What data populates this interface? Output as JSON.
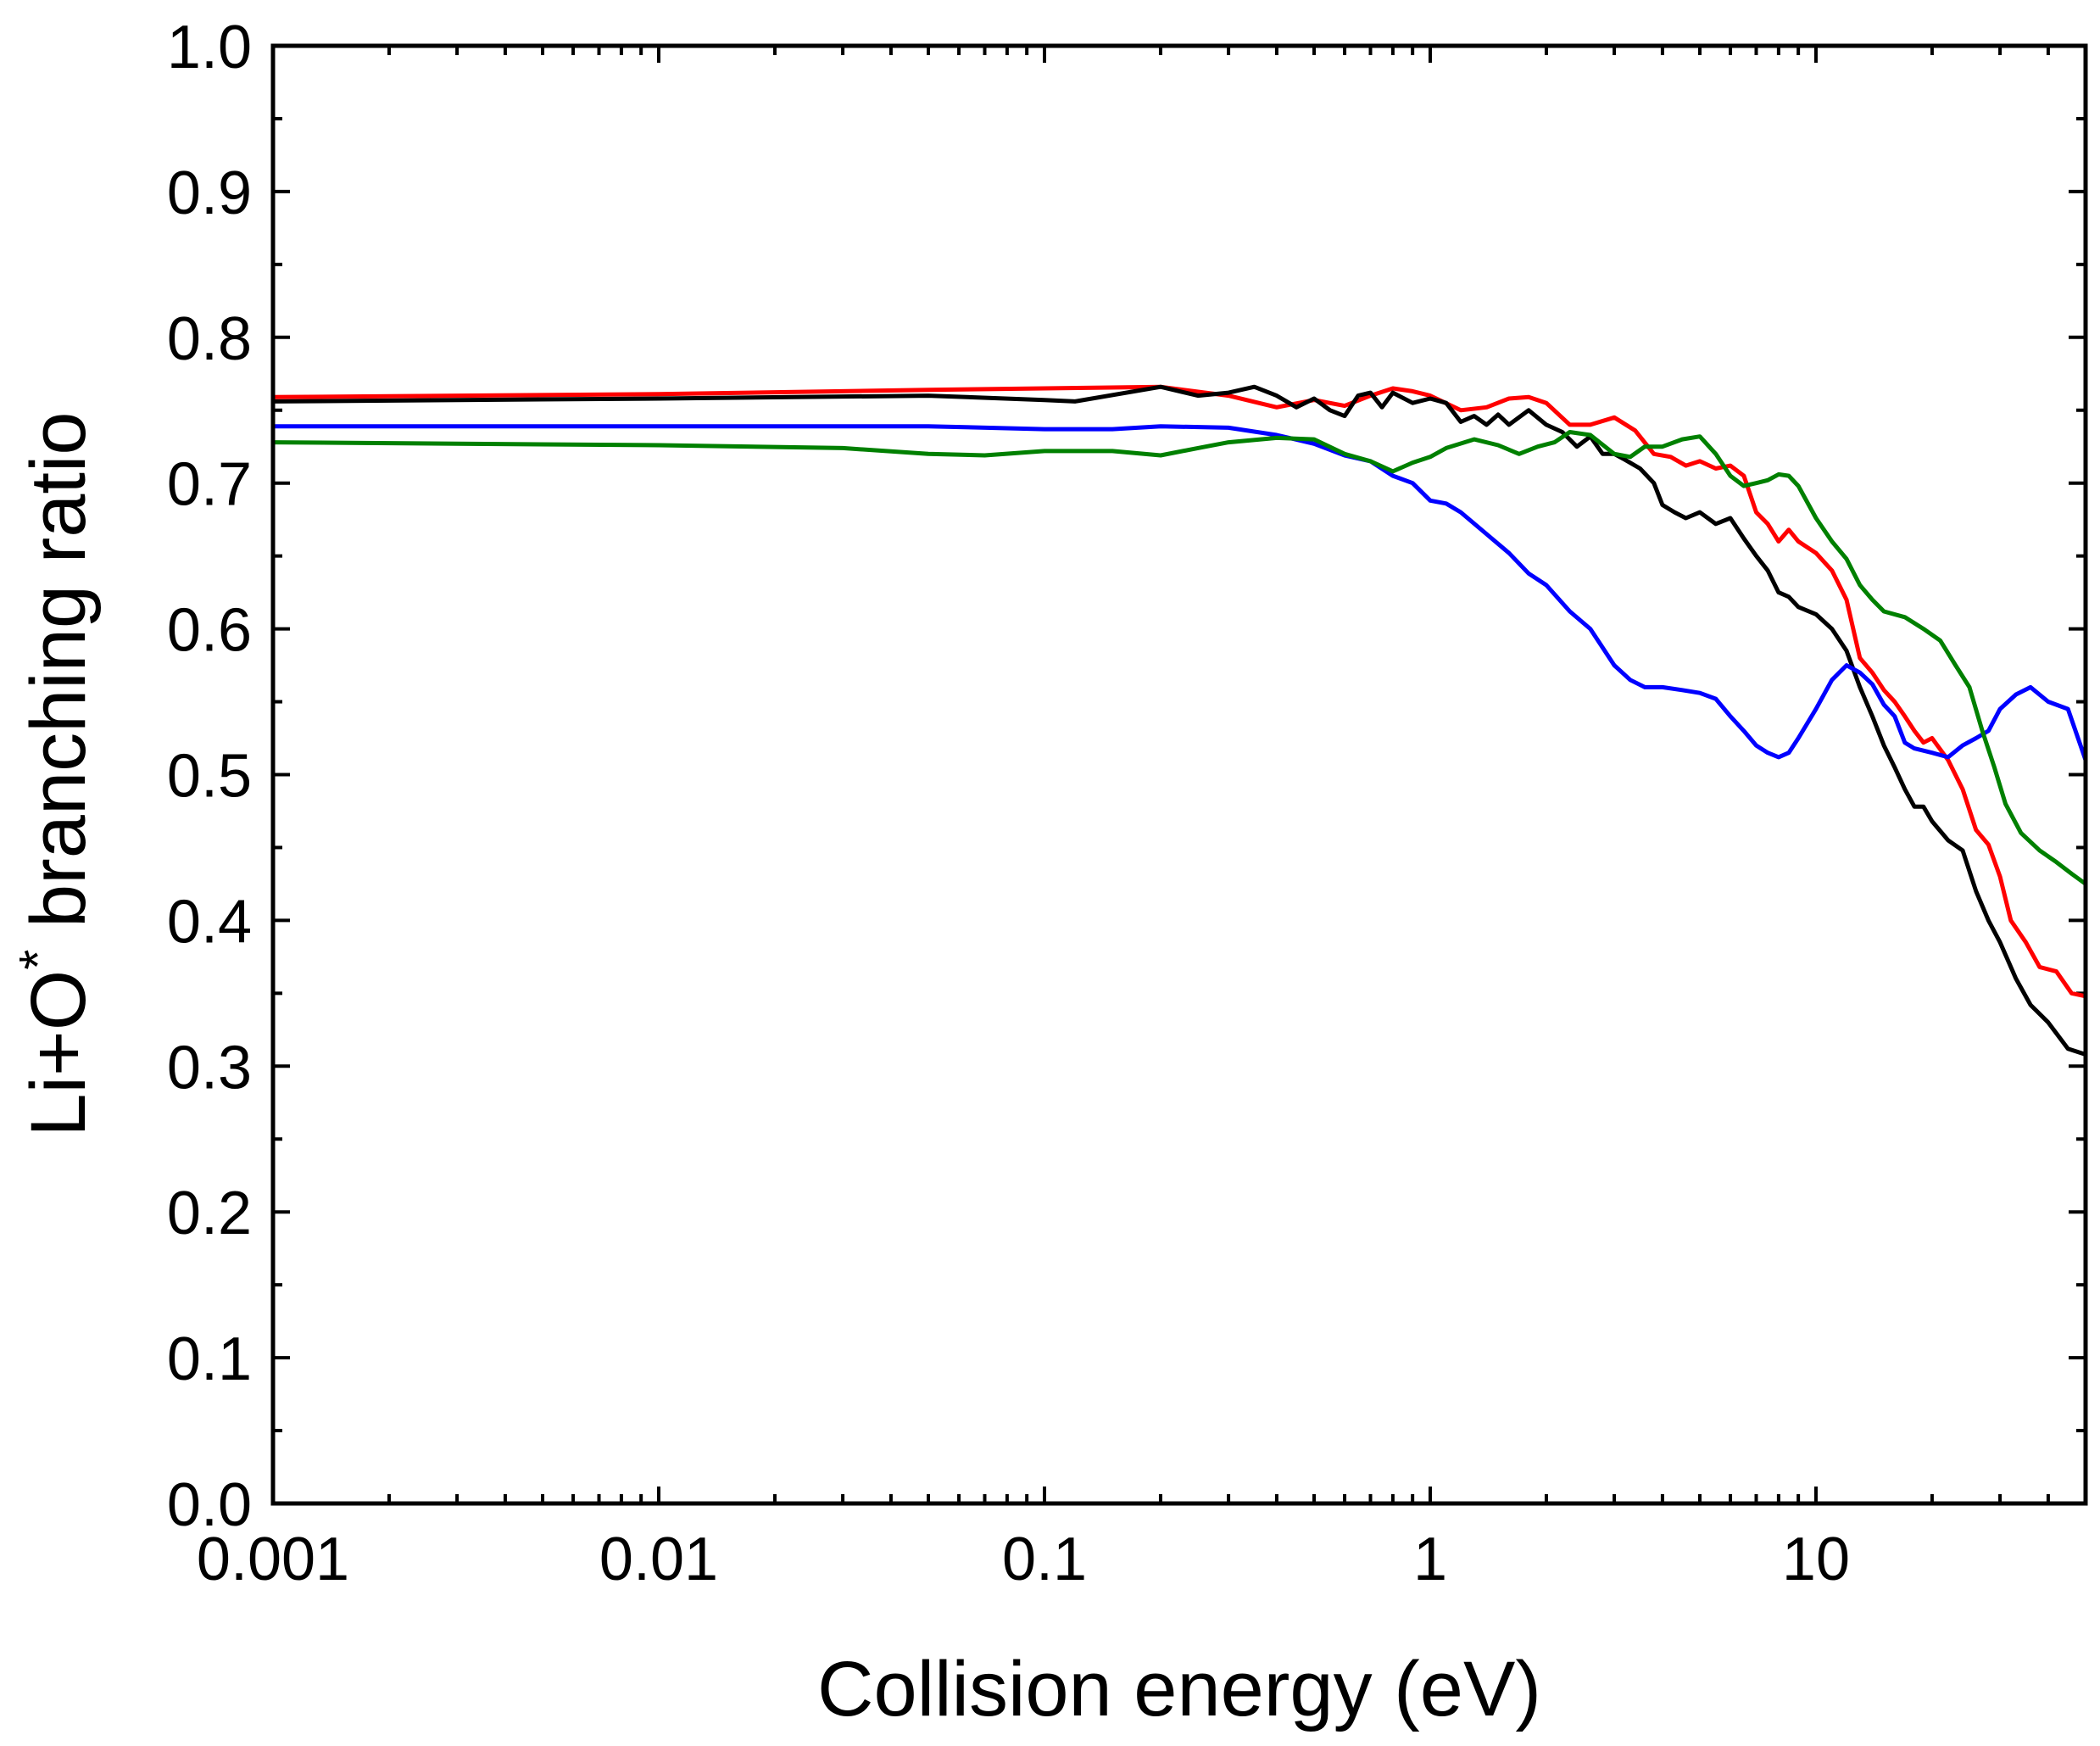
{
  "chart_data": {
    "type": "line",
    "title": "",
    "xlabel": "Collision energy (eV)",
    "ylabel_main": "Li+O",
    "ylabel_sup": "*",
    "ylabel_rest": " branching ratio",
    "x_scale": "log",
    "xlim": [
      0.001,
      50
    ],
    "ylim": [
      0.0,
      1.0
    ],
    "x_ticks": [
      0.001,
      0.01,
      0.1,
      1,
      10
    ],
    "x_tick_labels": [
      "0.001",
      "0.01",
      "0.1",
      "1",
      "10"
    ],
    "y_ticks": [
      0.0,
      0.1,
      0.2,
      0.3,
      0.4,
      0.5,
      0.6,
      0.7,
      0.8,
      0.9,
      1.0
    ],
    "y_tick_labels": [
      "0.0",
      "0.1",
      "0.2",
      "0.3",
      "0.4",
      "0.5",
      "0.6",
      "0.7",
      "0.8",
      "0.9",
      "1.0"
    ],
    "grid": false,
    "legend": "none",
    "series": [
      {
        "color": "#ff0000",
        "points": [
          [
            0.001,
            0.759
          ],
          [
            0.01,
            0.761
          ],
          [
            0.05,
            0.764
          ],
          [
            0.1,
            0.765
          ],
          [
            0.2,
            0.766
          ],
          [
            0.3,
            0.76
          ],
          [
            0.4,
            0.752
          ],
          [
            0.5,
            0.757
          ],
          [
            0.6,
            0.753
          ],
          [
            0.7,
            0.76
          ],
          [
            0.8,
            0.765
          ],
          [
            0.9,
            0.763
          ],
          [
            1.0,
            0.76
          ],
          [
            1.2,
            0.75
          ],
          [
            1.4,
            0.752
          ],
          [
            1.6,
            0.758
          ],
          [
            1.8,
            0.759
          ],
          [
            2.0,
            0.755
          ],
          [
            2.3,
            0.74
          ],
          [
            2.6,
            0.74
          ],
          [
            3.0,
            0.745
          ],
          [
            3.4,
            0.736
          ],
          [
            3.8,
            0.72
          ],
          [
            4.2,
            0.718
          ],
          [
            4.6,
            0.712
          ],
          [
            5.0,
            0.715
          ],
          [
            5.5,
            0.71
          ],
          [
            6.0,
            0.712
          ],
          [
            6.5,
            0.705
          ],
          [
            7.0,
            0.68
          ],
          [
            7.5,
            0.672
          ],
          [
            8.0,
            0.66
          ],
          [
            8.5,
            0.668
          ],
          [
            9.0,
            0.66
          ],
          [
            10.0,
            0.652
          ],
          [
            11.0,
            0.64
          ],
          [
            12.0,
            0.62
          ],
          [
            13.0,
            0.58
          ],
          [
            14.0,
            0.57
          ],
          [
            15.0,
            0.558
          ],
          [
            16.0,
            0.55
          ],
          [
            17.0,
            0.54
          ],
          [
            18.0,
            0.53
          ],
          [
            19.0,
            0.522
          ],
          [
            20.0,
            0.525
          ],
          [
            22.0,
            0.51
          ],
          [
            24.0,
            0.49
          ],
          [
            26.0,
            0.462
          ],
          [
            28.0,
            0.452
          ],
          [
            30.0,
            0.43
          ],
          [
            32.0,
            0.4
          ],
          [
            35.0,
            0.385
          ],
          [
            38.0,
            0.368
          ],
          [
            42.0,
            0.365
          ],
          [
            46.0,
            0.35
          ],
          [
            50.0,
            0.348
          ]
        ]
      },
      {
        "color": "#000000",
        "points": [
          [
            0.001,
            0.756
          ],
          [
            0.01,
            0.758
          ],
          [
            0.05,
            0.76
          ],
          [
            0.1,
            0.757
          ],
          [
            0.12,
            0.756
          ],
          [
            0.2,
            0.766
          ],
          [
            0.25,
            0.76
          ],
          [
            0.3,
            0.762
          ],
          [
            0.35,
            0.766
          ],
          [
            0.4,
            0.76
          ],
          [
            0.45,
            0.752
          ],
          [
            0.5,
            0.758
          ],
          [
            0.55,
            0.75
          ],
          [
            0.6,
            0.746
          ],
          [
            0.65,
            0.76
          ],
          [
            0.7,
            0.762
          ],
          [
            0.75,
            0.752
          ],
          [
            0.8,
            0.762
          ],
          [
            0.9,
            0.755
          ],
          [
            1.0,
            0.758
          ],
          [
            1.1,
            0.755
          ],
          [
            1.2,
            0.742
          ],
          [
            1.3,
            0.746
          ],
          [
            1.4,
            0.74
          ],
          [
            1.5,
            0.747
          ],
          [
            1.6,
            0.74
          ],
          [
            1.8,
            0.75
          ],
          [
            2.0,
            0.74
          ],
          [
            2.2,
            0.735
          ],
          [
            2.4,
            0.725
          ],
          [
            2.6,
            0.732
          ],
          [
            2.8,
            0.72
          ],
          [
            3.0,
            0.72
          ],
          [
            3.2,
            0.716
          ],
          [
            3.5,
            0.71
          ],
          [
            3.8,
            0.7
          ],
          [
            4.0,
            0.685
          ],
          [
            4.3,
            0.68
          ],
          [
            4.6,
            0.676
          ],
          [
            5.0,
            0.68
          ],
          [
            5.5,
            0.672
          ],
          [
            6.0,
            0.676
          ],
          [
            6.5,
            0.662
          ],
          [
            7.0,
            0.65
          ],
          [
            7.5,
            0.64
          ],
          [
            8.0,
            0.625
          ],
          [
            8.5,
            0.622
          ],
          [
            9.0,
            0.615
          ],
          [
            10.0,
            0.61
          ],
          [
            11.0,
            0.6
          ],
          [
            12.0,
            0.585
          ],
          [
            13.0,
            0.56
          ],
          [
            14.0,
            0.54
          ],
          [
            15.0,
            0.52
          ],
          [
            16.0,
            0.505
          ],
          [
            17.0,
            0.49
          ],
          [
            18.0,
            0.478
          ],
          [
            19.0,
            0.478
          ],
          [
            20.0,
            0.468
          ],
          [
            22.0,
            0.455
          ],
          [
            24.0,
            0.448
          ],
          [
            26.0,
            0.42
          ],
          [
            28.0,
            0.4
          ],
          [
            30.0,
            0.385
          ],
          [
            33.0,
            0.36
          ],
          [
            36.0,
            0.342
          ],
          [
            40.0,
            0.33
          ],
          [
            45.0,
            0.312
          ],
          [
            50.0,
            0.308
          ]
        ]
      },
      {
        "color": "#0000ff",
        "points": [
          [
            0.001,
            0.739
          ],
          [
            0.01,
            0.739
          ],
          [
            0.05,
            0.739
          ],
          [
            0.1,
            0.737
          ],
          [
            0.15,
            0.737
          ],
          [
            0.2,
            0.739
          ],
          [
            0.3,
            0.738
          ],
          [
            0.4,
            0.733
          ],
          [
            0.5,
            0.727
          ],
          [
            0.6,
            0.719
          ],
          [
            0.7,
            0.715
          ],
          [
            0.8,
            0.705
          ],
          [
            0.9,
            0.7
          ],
          [
            1.0,
            0.688
          ],
          [
            1.1,
            0.686
          ],
          [
            1.2,
            0.68
          ],
          [
            1.4,
            0.665
          ],
          [
            1.6,
            0.652
          ],
          [
            1.8,
            0.638
          ],
          [
            2.0,
            0.63
          ],
          [
            2.3,
            0.612
          ],
          [
            2.6,
            0.6
          ],
          [
            3.0,
            0.575
          ],
          [
            3.3,
            0.565
          ],
          [
            3.6,
            0.56
          ],
          [
            4.0,
            0.56
          ],
          [
            4.5,
            0.558
          ],
          [
            5.0,
            0.556
          ],
          [
            5.5,
            0.552
          ],
          [
            6.0,
            0.54
          ],
          [
            6.5,
            0.53
          ],
          [
            7.0,
            0.52
          ],
          [
            7.5,
            0.515
          ],
          [
            8.0,
            0.512
          ],
          [
            8.5,
            0.515
          ],
          [
            9.0,
            0.525
          ],
          [
            10.0,
            0.545
          ],
          [
            11.0,
            0.565
          ],
          [
            12.0,
            0.575
          ],
          [
            13.0,
            0.57
          ],
          [
            14.0,
            0.562
          ],
          [
            15.0,
            0.548
          ],
          [
            16.0,
            0.54
          ],
          [
            17.0,
            0.522
          ],
          [
            18.0,
            0.518
          ],
          [
            20.0,
            0.515
          ],
          [
            22.0,
            0.512
          ],
          [
            24.0,
            0.52
          ],
          [
            26.0,
            0.525
          ],
          [
            28.0,
            0.53
          ],
          [
            30.0,
            0.545
          ],
          [
            33.0,
            0.555
          ],
          [
            36.0,
            0.56
          ],
          [
            40.0,
            0.55
          ],
          [
            45.0,
            0.545
          ],
          [
            50.0,
            0.51
          ]
        ]
      },
      {
        "color": "#008000",
        "points": [
          [
            0.001,
            0.728
          ],
          [
            0.01,
            0.726
          ],
          [
            0.03,
            0.724
          ],
          [
            0.05,
            0.72
          ],
          [
            0.07,
            0.719
          ],
          [
            0.1,
            0.722
          ],
          [
            0.15,
            0.722
          ],
          [
            0.2,
            0.719
          ],
          [
            0.25,
            0.724
          ],
          [
            0.3,
            0.728
          ],
          [
            0.4,
            0.731
          ],
          [
            0.5,
            0.73
          ],
          [
            0.6,
            0.72
          ],
          [
            0.7,
            0.715
          ],
          [
            0.8,
            0.708
          ],
          [
            0.9,
            0.714
          ],
          [
            1.0,
            0.718
          ],
          [
            1.1,
            0.724
          ],
          [
            1.3,
            0.73
          ],
          [
            1.5,
            0.726
          ],
          [
            1.7,
            0.72
          ],
          [
            1.9,
            0.725
          ],
          [
            2.1,
            0.728
          ],
          [
            2.3,
            0.735
          ],
          [
            2.6,
            0.733
          ],
          [
            3.0,
            0.72
          ],
          [
            3.3,
            0.718
          ],
          [
            3.6,
            0.725
          ],
          [
            4.0,
            0.725
          ],
          [
            4.5,
            0.73
          ],
          [
            5.0,
            0.732
          ],
          [
            5.5,
            0.72
          ],
          [
            6.0,
            0.705
          ],
          [
            6.5,
            0.698
          ],
          [
            7.0,
            0.7
          ],
          [
            7.5,
            0.702
          ],
          [
            8.0,
            0.706
          ],
          [
            8.5,
            0.705
          ],
          [
            9.0,
            0.698
          ],
          [
            10.0,
            0.676
          ],
          [
            11.0,
            0.66
          ],
          [
            12.0,
            0.648
          ],
          [
            13.0,
            0.63
          ],
          [
            14.0,
            0.62
          ],
          [
            15.0,
            0.612
          ],
          [
            17.0,
            0.608
          ],
          [
            19.0,
            0.6
          ],
          [
            21.0,
            0.592
          ],
          [
            23.0,
            0.575
          ],
          [
            25.0,
            0.56
          ],
          [
            27.0,
            0.53
          ],
          [
            29.0,
            0.505
          ],
          [
            31.0,
            0.48
          ],
          [
            34.0,
            0.46
          ],
          [
            38.0,
            0.448
          ],
          [
            42.0,
            0.44
          ],
          [
            46.0,
            0.432
          ],
          [
            50.0,
            0.425
          ]
        ]
      }
    ]
  }
}
